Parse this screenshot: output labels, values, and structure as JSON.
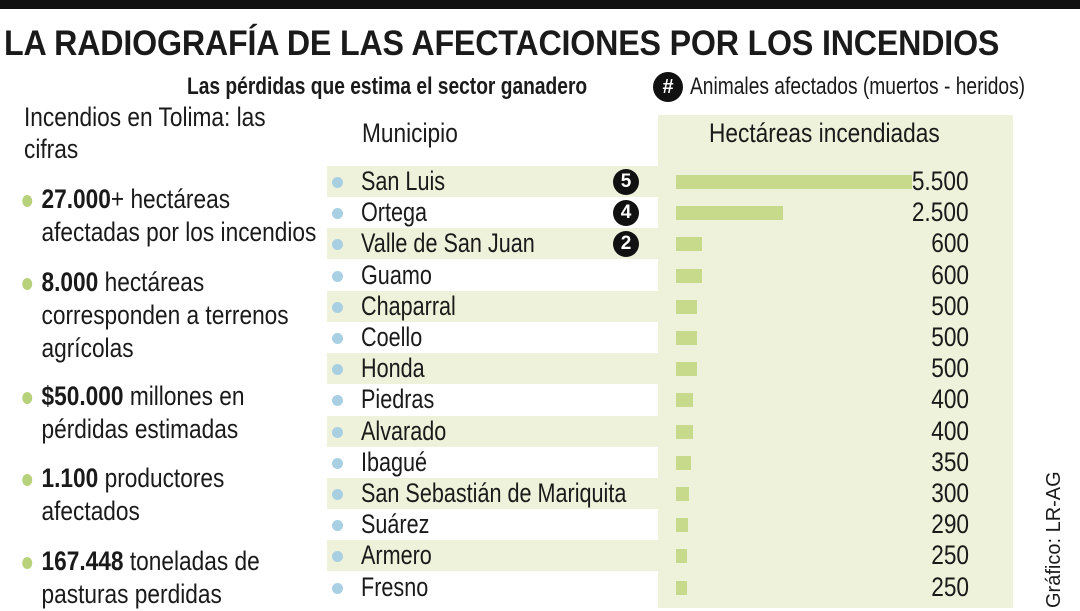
{
  "title": "LA RADIOGRAFÍA DE LAS AFECTACIONES POR LOS INCENDIOS",
  "subtitle": "Las pérdidas que estima el sector ganadero",
  "legend": {
    "symbol": "#",
    "text": "Animales afectados (muertos - heridos)"
  },
  "left_panel": {
    "title": "Incendios en Tolima: las cifras",
    "facts": [
      {
        "value": "27.000",
        "text": "+ hectáreas afectadas por los incendios"
      },
      {
        "value": "8.000",
        "text": " hectáreas corresponden a terrenos agrícolas"
      },
      {
        "value": "$50.000",
        "text": " millones en pérdidas estimadas"
      },
      {
        "value": "1.100",
        "text": " productores afectados"
      },
      {
        "value": "167.448",
        "text": " toneladas de pasturas perdidas"
      }
    ]
  },
  "colors": {
    "bar": "#c7da8c",
    "row_shade": "#eef2da",
    "municipio_dot": "#a9cfe3",
    "fact_dot": "#b7d27a"
  },
  "credit": "Gráfico: LR-AG",
  "chart_data": {
    "type": "bar",
    "orientation": "horizontal",
    "column_headers": {
      "category": "Municipio",
      "value": "Hectáreas incendiadas"
    },
    "categories": [
      "San Luis",
      "Ortega",
      "Valle de San Juan",
      "Guamo",
      "Chaparral",
      "Coello",
      "Honda",
      "Piedras",
      "Alvarado",
      "Ibagué",
      "San Sebastián de Mariquita",
      "Suárez",
      "Armero",
      "Fresno"
    ],
    "values": [
      5500,
      2500,
      600,
      600,
      500,
      500,
      500,
      400,
      400,
      350,
      300,
      290,
      250,
      250
    ],
    "value_labels": [
      "5.500",
      "2.500",
      "600",
      "600",
      "500",
      "500",
      "500",
      "400",
      "400",
      "350",
      "300",
      "290",
      "250",
      "250"
    ],
    "animals_affected": [
      5,
      4,
      2,
      null,
      null,
      null,
      null,
      null,
      null,
      null,
      null,
      null,
      null,
      null
    ],
    "xlim": [
      0,
      6250
    ]
  }
}
